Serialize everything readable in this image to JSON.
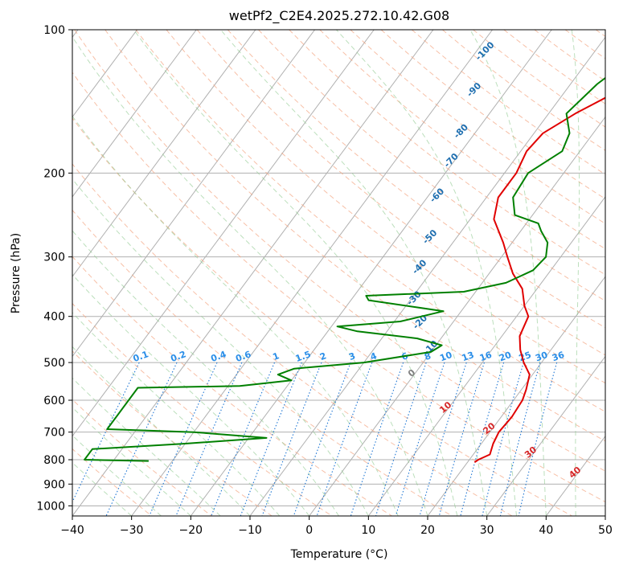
{
  "chart_data": {
    "type": "line",
    "title": "wetPf2_C2E4.2025.272.10.42.G08",
    "xlabel": "Temperature (°C)",
    "ylabel": "Pressure (hPa)",
    "xlim": [
      -40,
      50
    ],
    "ylim": [
      1050,
      100
    ],
    "y_scale": "log",
    "grid": true,
    "x_ticks": [
      -40,
      -30,
      -20,
      -10,
      0,
      10,
      20,
      30,
      40,
      50
    ],
    "x_tick_labels": [
      "−40",
      "−30",
      "−20",
      "−10",
      "0",
      "10",
      "20",
      "30",
      "40",
      "50"
    ],
    "y_ticks": [
      100,
      200,
      300,
      400,
      500,
      600,
      700,
      800,
      900,
      1000
    ],
    "y_tick_labels": [
      "100",
      "200",
      "300",
      "400",
      "500",
      "600",
      "700",
      "800",
      "900",
      "1000"
    ],
    "dry_adiabat_labels": [
      {
        "text": "-100",
        "p": 112,
        "t": -28
      },
      {
        "text": "-90",
        "p": 135,
        "t": -25
      },
      {
        "text": "-80",
        "p": 165,
        "t": -22
      },
      {
        "text": "-70",
        "p": 190,
        "t": -20
      },
      {
        "text": "-60",
        "p": 225,
        "t": -18
      },
      {
        "text": "-50",
        "p": 275,
        "t": -14
      },
      {
        "text": "-40",
        "p": 318,
        "t": -12
      },
      {
        "text": "-30",
        "p": 370,
        "t": -9
      },
      {
        "text": "-20",
        "p": 415,
        "t": -5
      },
      {
        "text": "-10",
        "p": 470,
        "t": 0
      }
    ],
    "moist_adiabat_labels": [
      {
        "text": "0",
        "p": 532,
        "t": 0
      },
      {
        "text": "10",
        "p": 628,
        "t": 10
      },
      {
        "text": "20",
        "p": 695,
        "t": 20
      },
      {
        "text": "30",
        "p": 780,
        "t": 30
      },
      {
        "text": "40",
        "p": 860,
        "t": 40
      }
    ],
    "mixing_ratio_labels": [
      "0.1",
      "0.2",
      "0.4",
      "0.6",
      "1",
      "1.5",
      "2",
      "3",
      "4",
      "6",
      "8",
      "10",
      "13",
      "16",
      "20",
      "25",
      "30",
      "36"
    ],
    "series": [
      {
        "name": "temperature",
        "color": "#e00000",
        "points": [
          [
            100,
            7
          ],
          [
            115,
            3
          ],
          [
            130,
            0.3
          ],
          [
            150,
            -5.5
          ],
          [
            165,
            -8.5
          ],
          [
            180,
            -9
          ],
          [
            200,
            -8
          ],
          [
            225,
            -8
          ],
          [
            250,
            -6
          ],
          [
            280,
            -1.5
          ],
          [
            300,
            1
          ],
          [
            325,
            4
          ],
          [
            350,
            7.5
          ],
          [
            380,
            10
          ],
          [
            400,
            12
          ],
          [
            440,
            13
          ],
          [
            470,
            14.8
          ],
          [
            500,
            17
          ],
          [
            530,
            19.5
          ],
          [
            570,
            20.8
          ],
          [
            600,
            21.5
          ],
          [
            650,
            21.8
          ],
          [
            700,
            21.5
          ],
          [
            740,
            22
          ],
          [
            780,
            22.8
          ],
          [
            800,
            21.5
          ],
          [
            810,
            21.2
          ]
        ]
      },
      {
        "name": "dewpoint",
        "color": "#008000",
        "points": [
          [
            100,
            2
          ],
          [
            115,
            -3
          ],
          [
            130,
            -5.5
          ],
          [
            150,
            -7
          ],
          [
            165,
            -4
          ],
          [
            180,
            -3
          ],
          [
            200,
            -6
          ],
          [
            225,
            -5.5
          ],
          [
            245,
            -3
          ],
          [
            255,
            2
          ],
          [
            265,
            3.5
          ],
          [
            280,
            6
          ],
          [
            300,
            7.5
          ],
          [
            320,
            7
          ],
          [
            340,
            4
          ],
          [
            355,
            -2
          ],
          [
            362,
            -18
          ],
          [
            370,
            -17
          ],
          [
            390,
            -3
          ],
          [
            410,
            -9
          ],
          [
            420,
            -19
          ],
          [
            430,
            -15
          ],
          [
            445,
            -4
          ],
          [
            460,
            1
          ],
          [
            475,
            0
          ],
          [
            500,
            -10
          ],
          [
            515,
            -21
          ],
          [
            530,
            -23
          ],
          [
            545,
            -20
          ],
          [
            560,
            -28
          ],
          [
            565,
            -45
          ],
          [
            690,
            -45
          ],
          [
            700,
            -30
          ],
          [
            720,
            -17
          ],
          [
            740,
            -30
          ],
          [
            760,
            -45
          ],
          [
            800,
            -45
          ],
          [
            805,
            -34
          ]
        ]
      }
    ]
  }
}
